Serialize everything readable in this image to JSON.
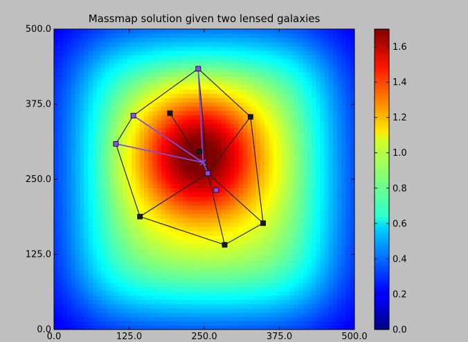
{
  "chart_data": {
    "type": "heatmap",
    "title": "Massmap solution given two lensed galaxies",
    "xlabel": "",
    "ylabel": "",
    "xlim": [
      0,
      500
    ],
    "ylim": [
      0,
      500
    ],
    "x_ticks": [
      "0.0",
      "125.0",
      "250.0",
      "375.0",
      "500.0"
    ],
    "y_ticks": [
      "0.0",
      "125.0",
      "250.0",
      "375.0",
      "500.0"
    ],
    "colorbar": {
      "range": [
        0,
        1.7
      ],
      "ticks": [
        "0.0",
        "0.2",
        "0.4",
        "0.6",
        "0.8",
        "1.0",
        "1.2",
        "1.4",
        "1.6"
      ],
      "colormap": "jet"
    },
    "lens_centers": [
      {
        "x": 242,
        "y": 296
      },
      {
        "x": 248,
        "y": 278
      }
    ],
    "images_galaxy_1": [
      {
        "x": 193,
        "y": 360
      },
      {
        "x": 327,
        "y": 354
      },
      {
        "x": 143,
        "y": 188
      },
      {
        "x": 348,
        "y": 177
      },
      {
        "x": 284,
        "y": 141
      },
      {
        "x": 242,
        "y": 296
      }
    ],
    "images_galaxy_2": [
      {
        "x": 240,
        "y": 434
      },
      {
        "x": 132,
        "y": 356
      },
      {
        "x": 103,
        "y": 309
      },
      {
        "x": 256,
        "y": 260
      },
      {
        "x": 270,
        "y": 232
      }
    ],
    "edges_black": [
      [
        [
          240,
          434
        ],
        [
          327,
          354
        ]
      ],
      [
        [
          327,
          354
        ],
        [
          348,
          177
        ]
      ],
      [
        [
          348,
          177
        ],
        [
          284,
          141
        ]
      ],
      [
        [
          284,
          141
        ],
        [
          143,
          188
        ]
      ],
      [
        [
          143,
          188
        ],
        [
          103,
          309
        ]
      ],
      [
        [
          103,
          309
        ],
        [
          132,
          356
        ]
      ],
      [
        [
          132,
          356
        ],
        [
          240,
          434
        ]
      ],
      [
        [
          256,
          260
        ],
        [
          240,
          434
        ]
      ],
      [
        [
          256,
          260
        ],
        [
          327,
          354
        ]
      ],
      [
        [
          256,
          260
        ],
        [
          348,
          177
        ]
      ],
      [
        [
          256,
          260
        ],
        [
          284,
          141
        ]
      ],
      [
        [
          256,
          260
        ],
        [
          143,
          188
        ]
      ],
      [
        [
          193,
          360
        ],
        [
          256,
          260
        ]
      ]
    ],
    "edges_purple": [
      [
        [
          240,
          434
        ],
        [
          248,
          278
        ]
      ],
      [
        [
          132,
          356
        ],
        [
          248,
          278
        ]
      ],
      [
        [
          103,
          309
        ],
        [
          248,
          278
        ]
      ],
      [
        [
          256,
          260
        ],
        [
          248,
          278
        ]
      ]
    ],
    "colors": {
      "background": "#bfbfbf",
      "black_marker": "#1a1a1a",
      "purple_marker": "#8a4cf0",
      "purple_line": "#7b4fe0"
    }
  }
}
